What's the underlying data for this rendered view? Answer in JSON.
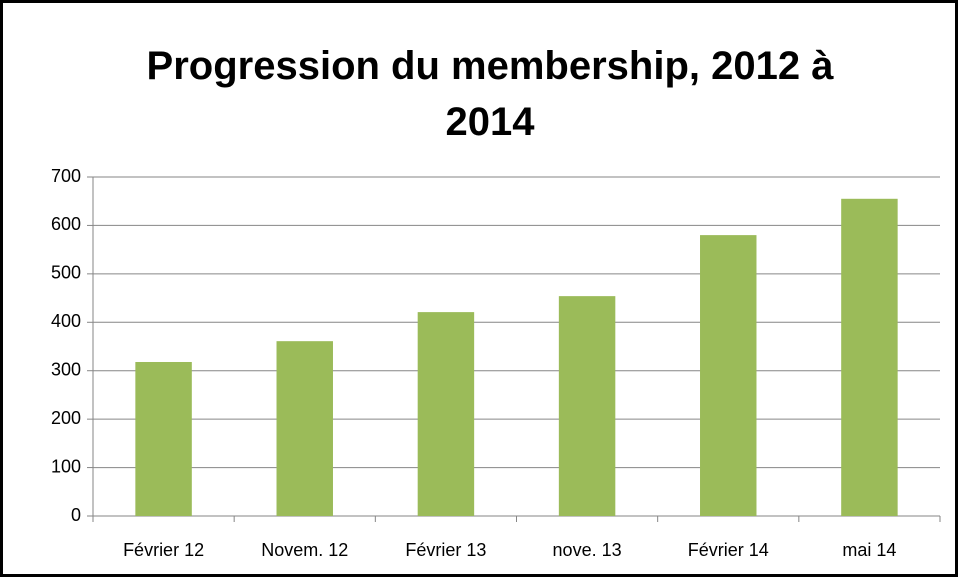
{
  "chart_data": {
    "type": "bar",
    "title": "Progression du membership, 2012 à 2014",
    "categories": [
      "Février 12",
      "Novem. 12",
      "Février 13",
      "nove. 13",
      "Février 14",
      "mai 14"
    ],
    "values": [
      318,
      361,
      421,
      454,
      580,
      655
    ],
    "color": "#9bbb59",
    "ylim": [
      0,
      700
    ],
    "yticks": [
      0,
      100,
      200,
      300,
      400,
      500,
      600,
      700
    ],
    "grid": true
  }
}
